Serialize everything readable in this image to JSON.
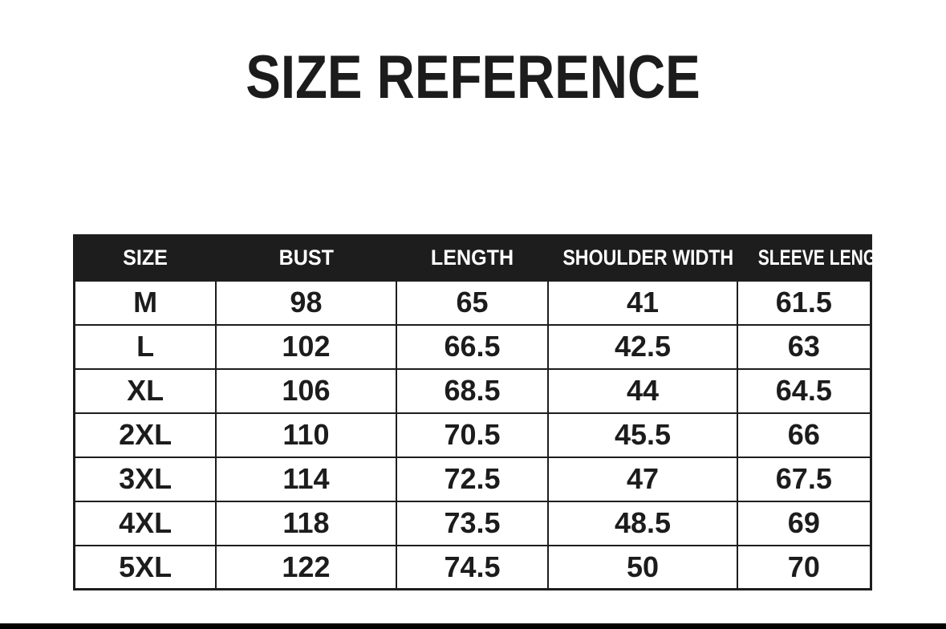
{
  "page": {
    "title": "SIZE REFERENCE"
  },
  "colors": {
    "page_bg": "#ffffff",
    "ink": "#1c1c1c",
    "header_bg": "#1d1d1d",
    "header_text": "#ffffff",
    "border": "#1d1d1d",
    "bottom_bar": "#000000"
  },
  "chart_data": {
    "type": "table",
    "title": "SIZE REFERENCE",
    "columns": [
      "SIZE",
      "BUST",
      "LENGTH",
      "SHOULDER WIDTH",
      "SLEEVE LENGTH"
    ],
    "rows": [
      [
        "M",
        "98",
        "65",
        "41",
        "61.5"
      ],
      [
        "L",
        "102",
        "66.5",
        "42.5",
        "63"
      ],
      [
        "XL",
        "106",
        "68.5",
        "44",
        "64.5"
      ],
      [
        "2XL",
        "110",
        "70.5",
        "45.5",
        "66"
      ],
      [
        "3XL",
        "114",
        "72.5",
        "47",
        "67.5"
      ],
      [
        "4XL",
        "118",
        "73.5",
        "48.5",
        "69"
      ],
      [
        "5XL",
        "122",
        "74.5",
        "50",
        "70"
      ]
    ]
  }
}
